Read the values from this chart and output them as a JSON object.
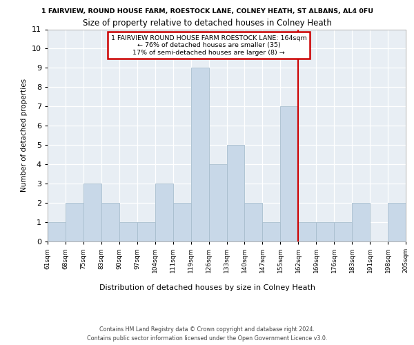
{
  "title_line1": "1 FAIRVIEW, ROUND HOUSE FARM, ROESTOCK LANE, COLNEY HEATH, ST ALBANS, AL4 0FU",
  "title_line2": "Size of property relative to detached houses in Colney Heath",
  "xlabel": "Distribution of detached houses by size in Colney Heath",
  "ylabel": "Number of detached properties",
  "bins": [
    "61sqm",
    "68sqm",
    "75sqm",
    "83sqm",
    "90sqm",
    "97sqm",
    "104sqm",
    "111sqm",
    "119sqm",
    "126sqm",
    "133sqm",
    "140sqm",
    "147sqm",
    "155sqm",
    "162sqm",
    "169sqm",
    "176sqm",
    "183sqm",
    "191sqm",
    "198sqm",
    "205sqm"
  ],
  "bar_heights": [
    1,
    2,
    3,
    2,
    1,
    1,
    3,
    2,
    9,
    4,
    5,
    2,
    1,
    7,
    1,
    1,
    1,
    2,
    0,
    2
  ],
  "bar_color": "#c8d8e8",
  "bar_edge_color": "#a8bece",
  "vline_x": 13.5,
  "vline_color": "#cc0000",
  "annotation_text": "1 FAIRVIEW ROUND HOUSE FARM ROESTOCK LANE: 164sqm\n← 76% of detached houses are smaller (35)\n17% of semi-detached houses are larger (8) →",
  "annotation_box_color": "#ffffff",
  "annotation_box_edge": "#cc0000",
  "ylim": [
    0,
    11
  ],
  "yticks": [
    0,
    1,
    2,
    3,
    4,
    5,
    6,
    7,
    8,
    9,
    10,
    11
  ],
  "footnote": "Contains HM Land Registry data © Crown copyright and database right 2024.\nContains public sector information licensed under the Open Government Licence v3.0.",
  "background_color": "#e8eef4"
}
